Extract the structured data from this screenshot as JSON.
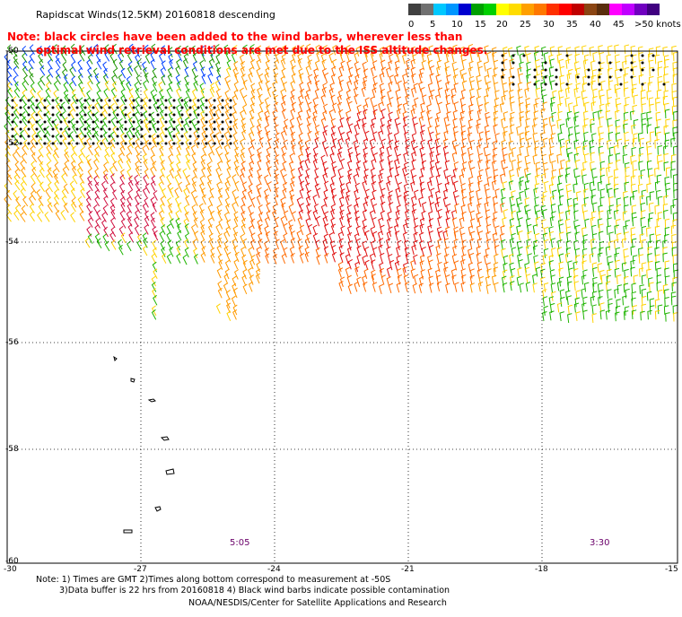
{
  "header": {
    "title": "Rapidscat Winds(12.5KM) 20160818 descending"
  },
  "legend": {
    "colors": [
      "#404040",
      "#6a6a6a",
      "#9a9a9a",
      "#00c8ff",
      "#0096ff",
      "#0000c8",
      "#009600",
      "#00c800",
      "#ffff00",
      "#ffd200",
      "#ffaa00",
      "#ff7800",
      "#ff3c00",
      "#ff0000",
      "#c80000",
      "#8b4513",
      "#5a2d0c",
      "#ff00ff",
      "#b400ff",
      "#7800c8"
    ],
    "labels": [
      "0",
      "5",
      "10",
      "15",
      "20",
      "25",
      "30",
      "35",
      "40",
      "45",
      ">50 knots"
    ]
  },
  "note": {
    "line1": "Note: black circles have been added to the wind barbs, wherever less than",
    "line2": "optimal wind retrieval conditions are met due to the ISS altitude changes."
  },
  "axes": {
    "y_labels": [
      "-50",
      "-52",
      "-54",
      "-56",
      "-58",
      "-60"
    ],
    "x_labels": [
      "-30",
      "-27",
      "-24",
      "-21",
      "-18",
      "-15"
    ]
  },
  "times": {
    "left": "5:05",
    "right": "3:30"
  },
  "footnote": {
    "line1": "Note: 1) Times are GMT 2)Times along bottom correspond to measurement at -50S",
    "line2": "3)Data buffer is 22 hrs from 20160818 4) Black wind barbs indicate possible contamination"
  },
  "credit": "NOAA/NESDIS/Center for Satellite Applications and Research"
}
